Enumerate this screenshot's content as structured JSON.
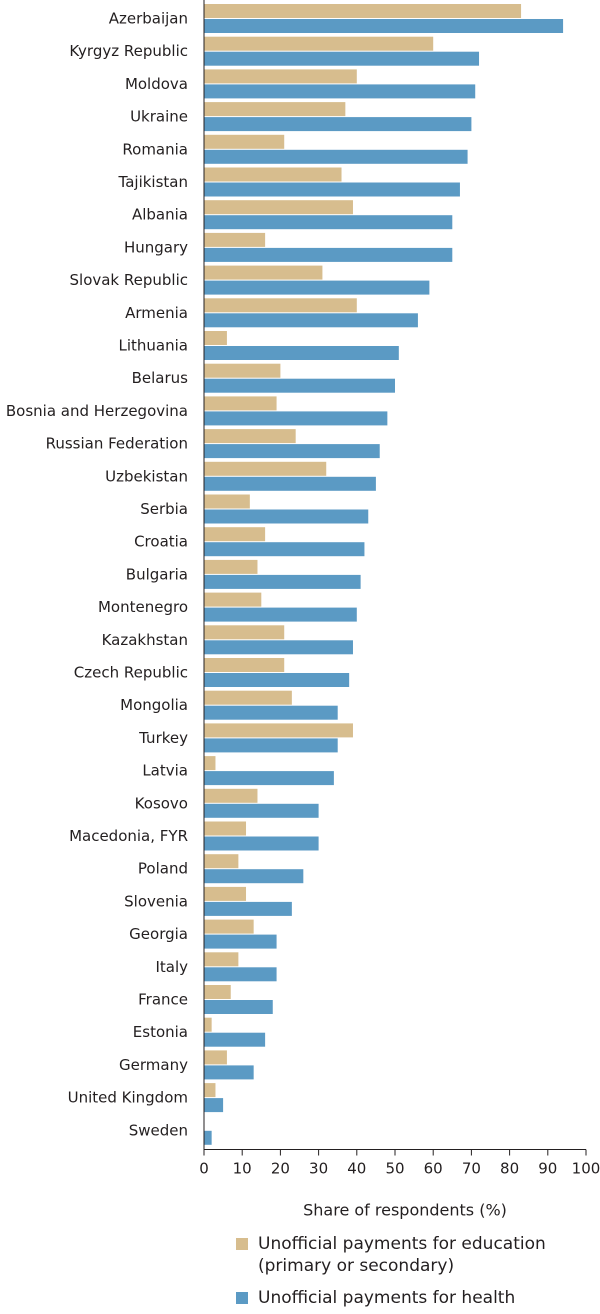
{
  "chart_data": {
    "type": "bar",
    "orientation": "horizontal",
    "categories": [
      "Azerbaijan",
      "Kyrgyz Republic",
      "Moldova",
      "Ukraine",
      "Romania",
      "Tajikistan",
      "Albania",
      "Hungary",
      "Slovak Republic",
      "Armenia",
      "Lithuania",
      "Belarus",
      "Bosnia and Herzegovina",
      "Russian Federation",
      "Uzbekistan",
      "Serbia",
      "Croatia",
      "Bulgaria",
      "Montenegro",
      "Kazakhstan",
      "Czech Republic",
      "Mongolia",
      "Turkey",
      "Latvia",
      "Kosovo",
      "Macedonia, FYR",
      "Poland",
      "Slovenia",
      "Georgia",
      "Italy",
      "France",
      "Estonia",
      "Germany",
      "United Kingdom",
      "Sweden"
    ],
    "series": [
      {
        "name": "Unofficial payments for education (primary or secondary)",
        "color": "#d7bd8e",
        "values": [
          83,
          60,
          40,
          37,
          21,
          36,
          39,
          16,
          31,
          40,
          6,
          20,
          19,
          24,
          32,
          12,
          16,
          14,
          15,
          21,
          21,
          23,
          39,
          3,
          14,
          11,
          9,
          11,
          13,
          9,
          7,
          2,
          6,
          3,
          0
        ]
      },
      {
        "name": "Unofficial payments for health",
        "color": "#5b9ac4",
        "values": [
          94,
          72,
          71,
          70,
          69,
          67,
          65,
          65,
          59,
          56,
          51,
          50,
          48,
          46,
          45,
          43,
          42,
          41,
          40,
          39,
          38,
          35,
          35,
          34,
          30,
          30,
          26,
          23,
          19,
          19,
          18,
          16,
          13,
          5,
          2
        ]
      }
    ],
    "xlabel": "Share of respondents (%)",
    "xlim": [
      0,
      100
    ],
    "xticks": [
      0,
      10,
      20,
      30,
      40,
      50,
      60,
      70,
      80,
      90,
      100
    ],
    "legend_position": "bottom",
    "grid": false
  },
  "legend": {
    "education_line1": "Unofficial payments for education",
    "education_line2": "(primary or secondary)",
    "health": "Unofficial payments for health"
  }
}
